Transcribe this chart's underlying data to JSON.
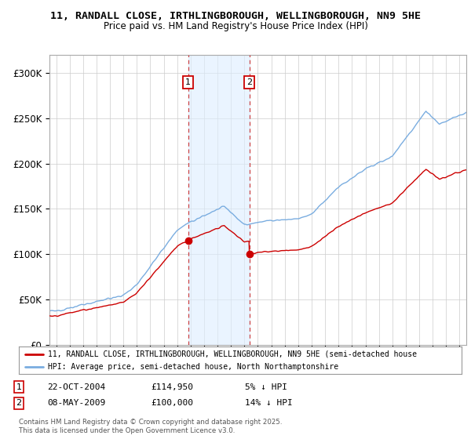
{
  "title_line1": "11, RANDALL CLOSE, IRTHLINGBOROUGH, WELLINGBOROUGH, NN9 5HE",
  "title_line2": "Price paid vs. HM Land Registry's House Price Index (HPI)",
  "ylim": [
    0,
    320000
  ],
  "yticks": [
    0,
    50000,
    100000,
    150000,
    200000,
    250000,
    300000
  ],
  "ytick_labels": [
    "£0",
    "£50K",
    "£100K",
    "£150K",
    "£200K",
    "£250K",
    "£300K"
  ],
  "background_color": "#ffffff",
  "plot_bg_color": "#ffffff",
  "grid_color": "#cccccc",
  "hpi_line_color": "#7aade0",
  "price_line_color": "#cc0000",
  "shade_color": "#ddeeff",
  "sale1_date": 2004.81,
  "sale1_price": 114950,
  "sale2_date": 2009.36,
  "sale2_price": 100000,
  "legend_line1": "11, RANDALL CLOSE, IRTHLINGBOROUGH, WELLINGBOROUGH, NN9 5HE (semi-detached house",
  "legend_line2": "HPI: Average price, semi-detached house, North Northamptonshire",
  "footer_text": "Contains HM Land Registry data © Crown copyright and database right 2025.\nThis data is licensed under the Open Government Licence v3.0.",
  "xstart": 1994.5,
  "xend": 2025.5
}
